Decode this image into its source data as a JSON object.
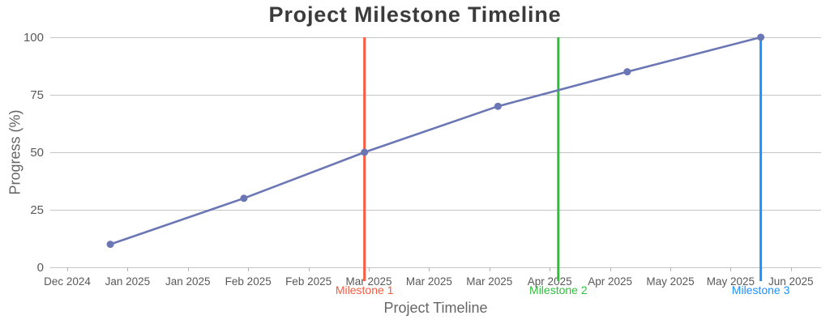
{
  "chart_data": {
    "type": "line",
    "title": "Project Milestone Timeline",
    "xlabel": "Project Timeline",
    "ylabel": "Progress (%)",
    "ylim": [
      0,
      100
    ],
    "y_ticks": [
      0,
      25,
      50,
      75,
      100
    ],
    "x_ticks": [
      {
        "date": "2024-12-22",
        "label": "Dec 2024"
      },
      {
        "date": "2025-01-05",
        "label": "Jan 2025"
      },
      {
        "date": "2025-01-19",
        "label": "Jan 2025"
      },
      {
        "date": "2025-02-02",
        "label": "Feb 2025"
      },
      {
        "date": "2025-02-16",
        "label": "Feb 2025"
      },
      {
        "date": "2025-03-02",
        "label": "Mar 2025"
      },
      {
        "date": "2025-03-16",
        "label": "Mar 2025"
      },
      {
        "date": "2025-03-30",
        "label": "Mar 2025"
      },
      {
        "date": "2025-04-13",
        "label": "Apr 2025"
      },
      {
        "date": "2025-04-27",
        "label": "Apr 2025"
      },
      {
        "date": "2025-05-11",
        "label": "May 2025"
      },
      {
        "date": "2025-05-25",
        "label": "May 2025"
      },
      {
        "date": "2025-06-08",
        "label": "Jun 2025"
      }
    ],
    "x_range": [
      "2024-12-18",
      "2025-06-15"
    ],
    "grid": "horizontal",
    "legend": "none",
    "series": [
      {
        "name": "Progress",
        "color": "#6b76b4",
        "points": [
          {
            "date": "2025-01-01",
            "value": 10
          },
          {
            "date": "2025-02-01",
            "value": 30
          },
          {
            "date": "2025-03-01",
            "value": 50
          },
          {
            "date": "2025-04-01",
            "value": 70
          },
          {
            "date": "2025-05-01",
            "value": 85
          },
          {
            "date": "2025-06-01",
            "value": 100
          }
        ]
      }
    ],
    "milestones": [
      {
        "label": "Milestone 1",
        "date": "2025-03-01",
        "color": "#fb5a3e"
      },
      {
        "label": "Milestone 2",
        "date": "2025-04-15",
        "color": "#2fbe3c"
      },
      {
        "label": "Milestone 3",
        "date": "2025-06-01",
        "color": "#1e90ff"
      }
    ]
  },
  "style": {
    "title_color": "#3b3b3b",
    "axis_title_color": "#666666",
    "tick_color": "#595959",
    "grid_color": "#c6c6c6",
    "tick_mark_color": "#b5b5b5",
    "background": "#ffffff"
  }
}
